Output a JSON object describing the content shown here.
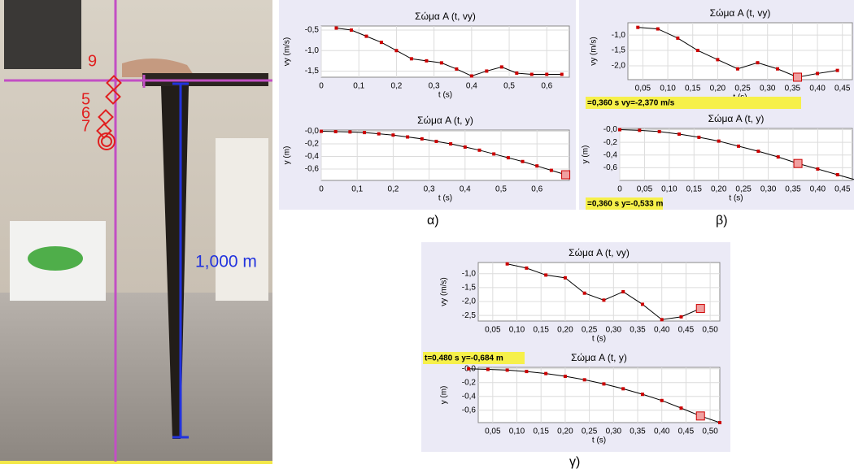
{
  "photo": {
    "measure": "1,000 m",
    "markers": [
      "9",
      "5",
      "6",
      "7"
    ]
  },
  "panel_labels": [
    "α)",
    "β)",
    "γ)"
  ],
  "chart_data": [
    {
      "type": "line",
      "title": "Σώμα A (t, vy)",
      "x_label": "t (s)",
      "y_label": "vy (m/s)",
      "color": "#000000",
      "marker_color": "#cc0000",
      "x": [
        0.04,
        0.08,
        0.12,
        0.16,
        0.2,
        0.24,
        0.28,
        0.32,
        0.36,
        0.4,
        0.44,
        0.48,
        0.52,
        0.56,
        0.6,
        0.64
      ],
      "values": [
        -0.45,
        -0.5,
        -0.65,
        -0.8,
        -1.0,
        -1.2,
        -1.25,
        -1.3,
        -1.45,
        -1.62,
        -1.5,
        -1.4,
        -1.55,
        -1.58,
        -1.58,
        -1.58
      ],
      "xlim": [
        0,
        0.66
      ],
      "ylim": [
        -1.65,
        -0.4
      ],
      "xticks": [
        0,
        {
          "value": 0.1,
          "label": "0,1"
        },
        {
          "value": 0.2,
          "label": "0,2"
        },
        {
          "value": 0.3,
          "label": "0,3"
        },
        {
          "value": 0.4,
          "label": "0,4"
        },
        {
          "value": 0.5,
          "label": "0,5"
        },
        {
          "value": 0.6,
          "label": "0,6"
        }
      ],
      "yticks": [
        {
          "value": -0.5,
          "label": "-0,5"
        },
        {
          "value": -1.0,
          "label": "-1,0"
        },
        {
          "value": -1.5,
          "label": "-1,5"
        }
      ],
      "grid": true
    },
    {
      "type": "line",
      "title": "Σώμα A (t, y)",
      "x_label": "t (s)",
      "y_label": "y (m)",
      "color": "#000000",
      "marker_color": "#cc0000",
      "x": [
        0,
        0.04,
        0.08,
        0.12,
        0.16,
        0.2,
        0.24,
        0.28,
        0.32,
        0.36,
        0.4,
        0.44,
        0.48,
        0.52,
        0.56,
        0.6,
        0.64,
        0.68
      ],
      "values": [
        0,
        -0.005,
        -0.01,
        -0.02,
        -0.04,
        -0.06,
        -0.09,
        -0.12,
        -0.16,
        -0.2,
        -0.25,
        -0.3,
        -0.36,
        -0.42,
        -0.48,
        -0.55,
        -0.62,
        -0.69
      ],
      "selected_index": 17,
      "xlim": [
        0,
        0.69
      ],
      "ylim": [
        -0.78,
        0.02
      ],
      "xticks": [
        0,
        {
          "value": 0.1,
          "label": "0,1"
        },
        {
          "value": 0.2,
          "label": "0,2"
        },
        {
          "value": 0.3,
          "label": "0,3"
        },
        {
          "value": 0.4,
          "label": "0,4"
        },
        {
          "value": 0.5,
          "label": "0,5"
        },
        {
          "value": 0.6,
          "label": "0,6"
        }
      ],
      "yticks": [
        {
          "value": 0,
          "label": "-0,0"
        },
        {
          "value": -0.2,
          "label": "-0,2"
        },
        {
          "value": -0.4,
          "label": "-0,4"
        },
        {
          "value": -0.6,
          "label": "-0,6"
        }
      ],
      "grid": true
    },
    {
      "type": "line",
      "title": "Σώμα A (t, vy)",
      "x_label": "t (s)",
      "y_label": "vy (m/s)",
      "color": "#000000",
      "marker_color": "#cc0000",
      "x": [
        0.04,
        0.08,
        0.12,
        0.16,
        0.2,
        0.24,
        0.28,
        0.32,
        0.36,
        0.4,
        0.44
      ],
      "values": [
        -0.75,
        -0.8,
        -1.1,
        -1.5,
        -1.8,
        -2.1,
        -1.9,
        -2.1,
        -2.37,
        -2.25,
        -2.15
      ],
      "selected_index": 8,
      "readout": "=0,360 s  vy=-2,370 m/s",
      "xlim": [
        0.02,
        0.47
      ],
      "ylim": [
        -2.45,
        -0.6
      ],
      "xticks": [
        {
          "value": 0.05,
          "label": "0,05"
        },
        {
          "value": 0.1,
          "label": "0,10"
        },
        {
          "value": 0.15,
          "label": "0,15"
        },
        {
          "value": 0.2,
          "label": "0,20"
        },
        {
          "value": 0.25,
          "label": "0,25"
        },
        {
          "value": 0.3,
          "label": "0,30"
        },
        {
          "value": 0.35,
          "label": "0,35"
        },
        {
          "value": 0.4,
          "label": "0,40"
        },
        {
          "value": 0.45,
          "label": "0,45"
        }
      ],
      "yticks": [
        {
          "value": -1.0,
          "label": "-1,0"
        },
        {
          "value": -1.5,
          "label": "-1,5"
        },
        {
          "value": -2.0,
          "label": "-2,0"
        }
      ],
      "grid": true
    },
    {
      "type": "line",
      "title": "Σώμα A (t, y)",
      "x_label": "t (s)",
      "y_label": "y (m)",
      "color": "#000000",
      "marker_color": "#cc0000",
      "x": [
        0,
        0.04,
        0.08,
        0.12,
        0.16,
        0.2,
        0.24,
        0.28,
        0.32,
        0.36,
        0.4,
        0.44,
        0.48
      ],
      "values": [
        0,
        -0.01,
        -0.03,
        -0.07,
        -0.12,
        -0.18,
        -0.26,
        -0.34,
        -0.43,
        -0.533,
        -0.62,
        -0.71,
        -0.8
      ],
      "selected_index": 9,
      "readout": "=0,360 s  y=-0,533 m",
      "xlim": [
        0,
        0.47
      ],
      "ylim": [
        -0.8,
        0.02
      ],
      "xticks": [
        0,
        {
          "value": 0.05,
          "label": "0,05"
        },
        {
          "value": 0.1,
          "label": "0,10"
        },
        {
          "value": 0.15,
          "label": "0,15"
        },
        {
          "value": 0.2,
          "label": "0,20"
        },
        {
          "value": 0.25,
          "label": "0,25"
        },
        {
          "value": 0.3,
          "label": "0,30"
        },
        {
          "value": 0.35,
          "label": "0,35"
        },
        {
          "value": 0.4,
          "label": "0,40"
        },
        {
          "value": 0.45,
          "label": "0,45"
        }
      ],
      "yticks": [
        {
          "value": 0,
          "label": "-0,0"
        },
        {
          "value": -0.2,
          "label": "-0,2"
        },
        {
          "value": -0.4,
          "label": "-0,4"
        },
        {
          "value": -0.6,
          "label": "-0,6"
        }
      ],
      "grid": true
    },
    {
      "type": "line",
      "title": "Σώμα A (t, vy)",
      "x_label": "t (s)",
      "y_label": "vy (m/s)",
      "color": "#000000",
      "marker_color": "#cc0000",
      "x": [
        0.08,
        0.12,
        0.16,
        0.2,
        0.24,
        0.28,
        0.32,
        0.36,
        0.4,
        0.44,
        0.48
      ],
      "values": [
        -0.65,
        -0.8,
        -1.05,
        -1.15,
        -1.7,
        -1.95,
        -1.65,
        -2.1,
        -2.65,
        -2.55,
        -2.25
      ],
      "selected_index": 10,
      "xlim": [
        0.02,
        0.52
      ],
      "ylim": [
        -2.7,
        -0.6
      ],
      "xticks": [
        {
          "value": 0.05,
          "label": "0,05"
        },
        {
          "value": 0.1,
          "label": "0,10"
        },
        {
          "value": 0.15,
          "label": "0,15"
        },
        {
          "value": 0.2,
          "label": "0,20"
        },
        {
          "value": 0.25,
          "label": "0,25"
        },
        {
          "value": 0.3,
          "label": "0,30"
        },
        {
          "value": 0.35,
          "label": "0,35"
        },
        {
          "value": 0.4,
          "label": "0,40"
        },
        {
          "value": 0.45,
          "label": "0,45"
        },
        {
          "value": 0.5,
          "label": "0,50"
        }
      ],
      "yticks": [
        {
          "value": -1.0,
          "label": "-1,0"
        },
        {
          "value": -1.5,
          "label": "-1,5"
        },
        {
          "value": -2.0,
          "label": "-2,0"
        },
        {
          "value": -2.5,
          "label": "-2,5"
        }
      ],
      "grid": true
    },
    {
      "type": "line",
      "title": "Σώμα A (t, y)",
      "x_label": "t (s)",
      "y_label": "y (m)",
      "color": "#000000",
      "marker_color": "#cc0000",
      "x": [
        0,
        0.04,
        0.08,
        0.12,
        0.16,
        0.2,
        0.24,
        0.28,
        0.32,
        0.36,
        0.4,
        0.44,
        0.48,
        0.52
      ],
      "values": [
        0,
        -0.01,
        -0.02,
        -0.04,
        -0.07,
        -0.11,
        -0.16,
        -0.22,
        -0.29,
        -0.37,
        -0.46,
        -0.57,
        -0.684,
        -0.78
      ],
      "selected_index": 12,
      "readout": "t=0,480 s  y=-0,684 m",
      "xlim": [
        0.02,
        0.52
      ],
      "ylim": [
        -0.78,
        0.02
      ],
      "xticks": [
        {
          "value": 0.05,
          "label": "0,05"
        },
        {
          "value": 0.1,
          "label": "0,10"
        },
        {
          "value": 0.15,
          "label": "0,15"
        },
        {
          "value": 0.2,
          "label": "0,20"
        },
        {
          "value": 0.25,
          "label": "0,25"
        },
        {
          "value": 0.3,
          "label": "0,30"
        },
        {
          "value": 0.35,
          "label": "0,35"
        },
        {
          "value": 0.4,
          "label": "0,40"
        },
        {
          "value": 0.45,
          "label": "0,45"
        },
        {
          "value": 0.5,
          "label": "0,50"
        }
      ],
      "yticks": [
        {
          "value": 0,
          "label": "-0,0"
        },
        {
          "value": -0.2,
          "label": "-0,2"
        },
        {
          "value": -0.4,
          "label": "-0,4"
        },
        {
          "value": -0.6,
          "label": "-0,6"
        }
      ],
      "grid": true
    }
  ]
}
